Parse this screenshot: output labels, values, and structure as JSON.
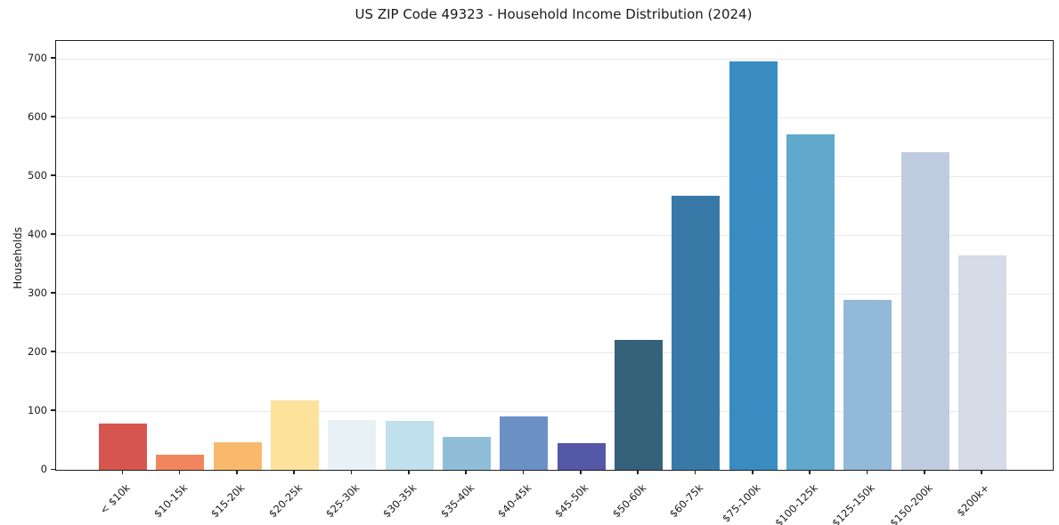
{
  "title": "US ZIP Code 49323 - Household Income Distribution (2024)",
  "chart_data": {
    "type": "bar",
    "title": "US ZIP Code 49323 - Household Income Distribution (2024)",
    "xlabel": "",
    "ylabel": "Households",
    "categories": [
      "< $10k",
      "$10-15k",
      "$15-20k",
      "$20-25k",
      "$25-30k",
      "$30-35k",
      "$35-40k",
      "$40-45k",
      "$45-50k",
      "$50-60k",
      "$60-75k",
      "$75-100k",
      "$100-125k",
      "$125-150k",
      "$150-200k",
      "$200k+"
    ],
    "values": [
      78,
      26,
      47,
      118,
      85,
      84,
      56,
      91,
      45,
      221,
      467,
      695,
      571,
      290,
      540,
      365
    ],
    "bar_colors": [
      "#d6564f",
      "#f1865e",
      "#f9b96d",
      "#fde29c",
      "#e7f1f6",
      "#bfe0ec",
      "#90bed9",
      "#6b90c5",
      "#5557a7",
      "#36617b",
      "#3979a7",
      "#398cc1",
      "#60a8cc",
      "#93b9d8",
      "#bfcce0",
      "#d7dae7"
    ],
    "yticks": [
      0,
      100,
      200,
      300,
      400,
      500,
      600,
      700
    ],
    "ylim": [
      0,
      730
    ],
    "grid": "horizontal-only",
    "grid_color": "#e8e8e8",
    "spine_color": "#1f1f1f",
    "background_color": "#ffffff",
    "legend": "none",
    "x_tick_label_rotation_deg": 45
  }
}
